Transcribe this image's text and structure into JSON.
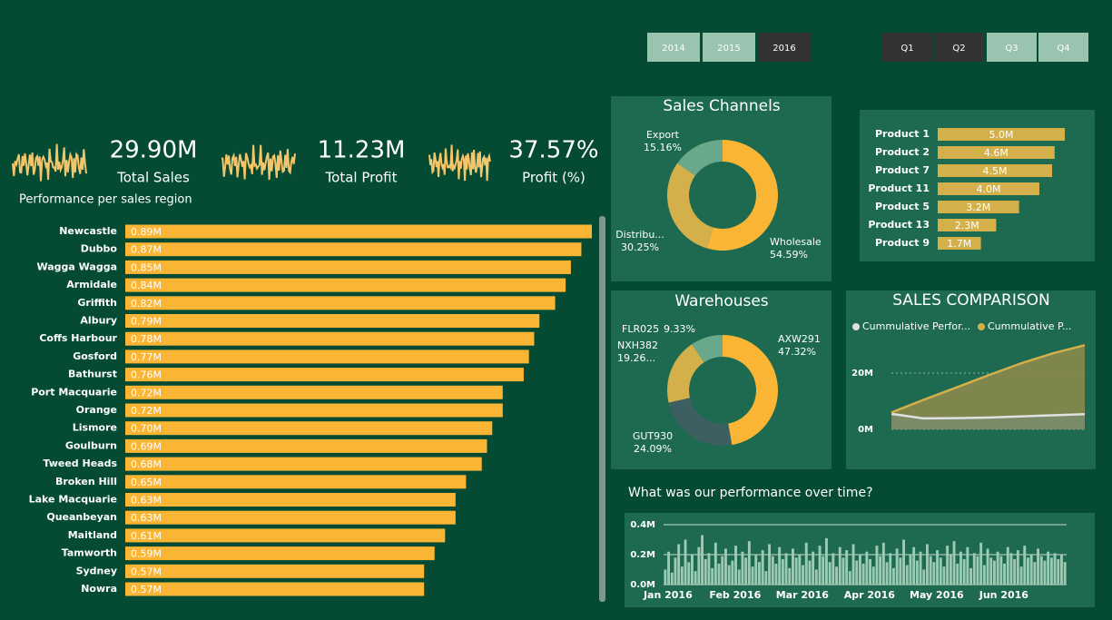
{
  "slicers": {
    "years": [
      {
        "label": "2014",
        "selected": false
      },
      {
        "label": "2015",
        "selected": false
      },
      {
        "label": "2016",
        "selected": true
      }
    ],
    "quarters": [
      {
        "label": "Q1",
        "selected": true
      },
      {
        "label": "Q2",
        "selected": true
      },
      {
        "label": "Q3",
        "selected": false
      },
      {
        "label": "Q4",
        "selected": false
      }
    ]
  },
  "kpis": [
    {
      "value": "29.90M",
      "label": "Total Sales"
    },
    {
      "value": "11.23M",
      "label": "Total Profit"
    },
    {
      "value": "37.57%",
      "label": "Profit (%)"
    }
  ],
  "chart_data": [
    {
      "type": "bar",
      "orientation": "horizontal",
      "title": "Performance per sales region",
      "categories": [
        "Newcastle",
        "Dubbo",
        "Wagga Wagga",
        "Armidale",
        "Griffith",
        "Albury",
        "Coffs Harbour",
        "Gosford",
        "Bathurst",
        "Port Macquarie",
        "Orange",
        "Lismore",
        "Goulburn",
        "Tweed Heads",
        "Broken Hill",
        "Lake Macquarie",
        "Queanbeyan",
        "Maitland",
        "Tamworth",
        "Sydney",
        "Nowra"
      ],
      "values": [
        0.89,
        0.87,
        0.85,
        0.84,
        0.82,
        0.79,
        0.78,
        0.77,
        0.76,
        0.72,
        0.72,
        0.7,
        0.69,
        0.68,
        0.65,
        0.63,
        0.63,
        0.61,
        0.59,
        0.57,
        0.57
      ],
      "value_labels": [
        "0.89M",
        "0.87M",
        "0.85M",
        "0.84M",
        "0.82M",
        "0.79M",
        "0.78M",
        "0.77M",
        "0.76M",
        "0.72M",
        "0.72M",
        "0.70M",
        "0.69M",
        "0.68M",
        "0.65M",
        "0.63M",
        "0.63M",
        "0.61M",
        "0.59M",
        "0.57M",
        "0.57M"
      ],
      "color": "#fbb534"
    },
    {
      "type": "donut",
      "title": "Sales Channels",
      "categories": [
        "Wholesale",
        "Distribu...",
        "Export"
      ],
      "values": [
        54.59,
        30.25,
        15.16
      ],
      "value_labels": [
        "54.59%",
        "30.25%",
        "15.16%"
      ],
      "colors": [
        "#fbb534",
        "#d4b04a",
        "#6aa88c"
      ]
    },
    {
      "type": "bar",
      "orientation": "horizontal",
      "categories": [
        "Product 1",
        "Product 2",
        "Product 7",
        "Product 11",
        "Product 5",
        "Product 13",
        "Product 9"
      ],
      "values": [
        5.0,
        4.6,
        4.5,
        4.0,
        3.2,
        2.3,
        1.7
      ],
      "value_labels": [
        "5.0M",
        "4.6M",
        "4.5M",
        "4.0M",
        "3.2M",
        "2.3M",
        "1.7M"
      ],
      "color": "#d4b04a"
    },
    {
      "type": "donut",
      "title": "Warehouses",
      "categories": [
        "AXW291",
        "GUT930",
        "NXH382",
        "FLR025"
      ],
      "values": [
        47.32,
        24.09,
        19.26,
        9.33
      ],
      "value_labels": [
        "47.32%",
        "24.09%",
        "19.26...",
        "9.33%"
      ],
      "colors": [
        "#fbb534",
        "#3e5f62",
        "#d4b04a",
        "#6aa88c"
      ]
    },
    {
      "type": "area",
      "title": "SALES COMPARISON",
      "series": [
        {
          "name": "Cummulative Perfor...",
          "color": "#e0e0e0",
          "values": [
            5.5,
            3.9,
            4.0,
            4.2,
            4.6,
            5.0,
            5.4
          ]
        },
        {
          "name": "Cummulative P...",
          "color": "#d4b04a",
          "values": [
            6.0,
            10.5,
            14.8,
            19.2,
            23.4,
            27.0,
            29.9
          ]
        }
      ],
      "ylim": [
        0,
        30
      ],
      "yticks": [
        {
          "value": 0,
          "label": "0M"
        },
        {
          "value": 20,
          "label": "20M"
        }
      ],
      "grid": true
    },
    {
      "type": "bar",
      "title": "What was our performance over time?",
      "categories": [
        "Jan 2016",
        null,
        null,
        null,
        null,
        null,
        null,
        null,
        null,
        null,
        null,
        null,
        null,
        null,
        null,
        null,
        null,
        null,
        null,
        null,
        "Feb 2016",
        null,
        null,
        null,
        null,
        null,
        null,
        null,
        null,
        null,
        null,
        null,
        null,
        null,
        null,
        null,
        null,
        null,
        null,
        null,
        "Mar 2016",
        null,
        null,
        null,
        null,
        null,
        null,
        null,
        null,
        null,
        null,
        null,
        null,
        null,
        null,
        null,
        null,
        null,
        null,
        null,
        "Apr 2016",
        null,
        null,
        null,
        null,
        null,
        null,
        null,
        null,
        null,
        null,
        null,
        null,
        null,
        null,
        null,
        null,
        null,
        null,
        null,
        "May 2016",
        null,
        null,
        null,
        null,
        null,
        null,
        null,
        null,
        null,
        null,
        null,
        null,
        null,
        null,
        null,
        null,
        null,
        null,
        null,
        "Jun 2016",
        null,
        null,
        null,
        null,
        null,
        null,
        null,
        null,
        null,
        null,
        null,
        null,
        null,
        null,
        null,
        null,
        null,
        null,
        null
      ],
      "values": [
        0.1,
        0.22,
        0.08,
        0.18,
        0.27,
        0.12,
        0.3,
        0.15,
        0.2,
        0.09,
        0.25,
        0.33,
        0.17,
        0.21,
        0.11,
        0.28,
        0.14,
        0.19,
        0.24,
        0.13,
        0.16,
        0.26,
        0.1,
        0.22,
        0.18,
        0.29,
        0.12,
        0.2,
        0.15,
        0.23,
        0.09,
        0.27,
        0.19,
        0.14,
        0.25,
        0.17,
        0.21,
        0.11,
        0.24,
        0.18,
        0.2,
        0.13,
        0.28,
        0.16,
        0.22,
        0.1,
        0.26,
        0.19,
        0.31,
        0.15,
        0.21,
        0.12,
        0.25,
        0.18,
        0.23,
        0.09,
        0.27,
        0.16,
        0.2,
        0.14,
        0.22,
        0.17,
        0.12,
        0.26,
        0.19,
        0.28,
        0.15,
        0.21,
        0.11,
        0.24,
        0.18,
        0.3,
        0.13,
        0.2,
        0.25,
        0.16,
        0.22,
        0.1,
        0.27,
        0.19,
        0.15,
        0.23,
        0.18,
        0.12,
        0.26,
        0.2,
        0.29,
        0.14,
        0.22,
        0.17,
        0.25,
        0.11,
        0.21,
        0.19,
        0.28,
        0.13,
        0.24,
        0.18,
        0.16,
        0.22,
        0.19,
        0.14,
        0.25,
        0.21,
        0.17,
        0.23,
        0.12,
        0.26,
        0.18,
        0.2,
        0.15,
        0.24,
        0.19,
        0.16,
        0.22,
        0.18,
        0.21,
        0.17,
        0.2,
        0.15
      ],
      "color": "#9ccab4",
      "ylim": [
        0,
        0.4
      ],
      "yticks": [
        {
          "value": 0,
          "label": "0.0M"
        },
        {
          "value": 0.2,
          "label": "0.2M"
        },
        {
          "value": 0.4,
          "label": "0.4M"
        }
      ],
      "grid": true
    }
  ]
}
